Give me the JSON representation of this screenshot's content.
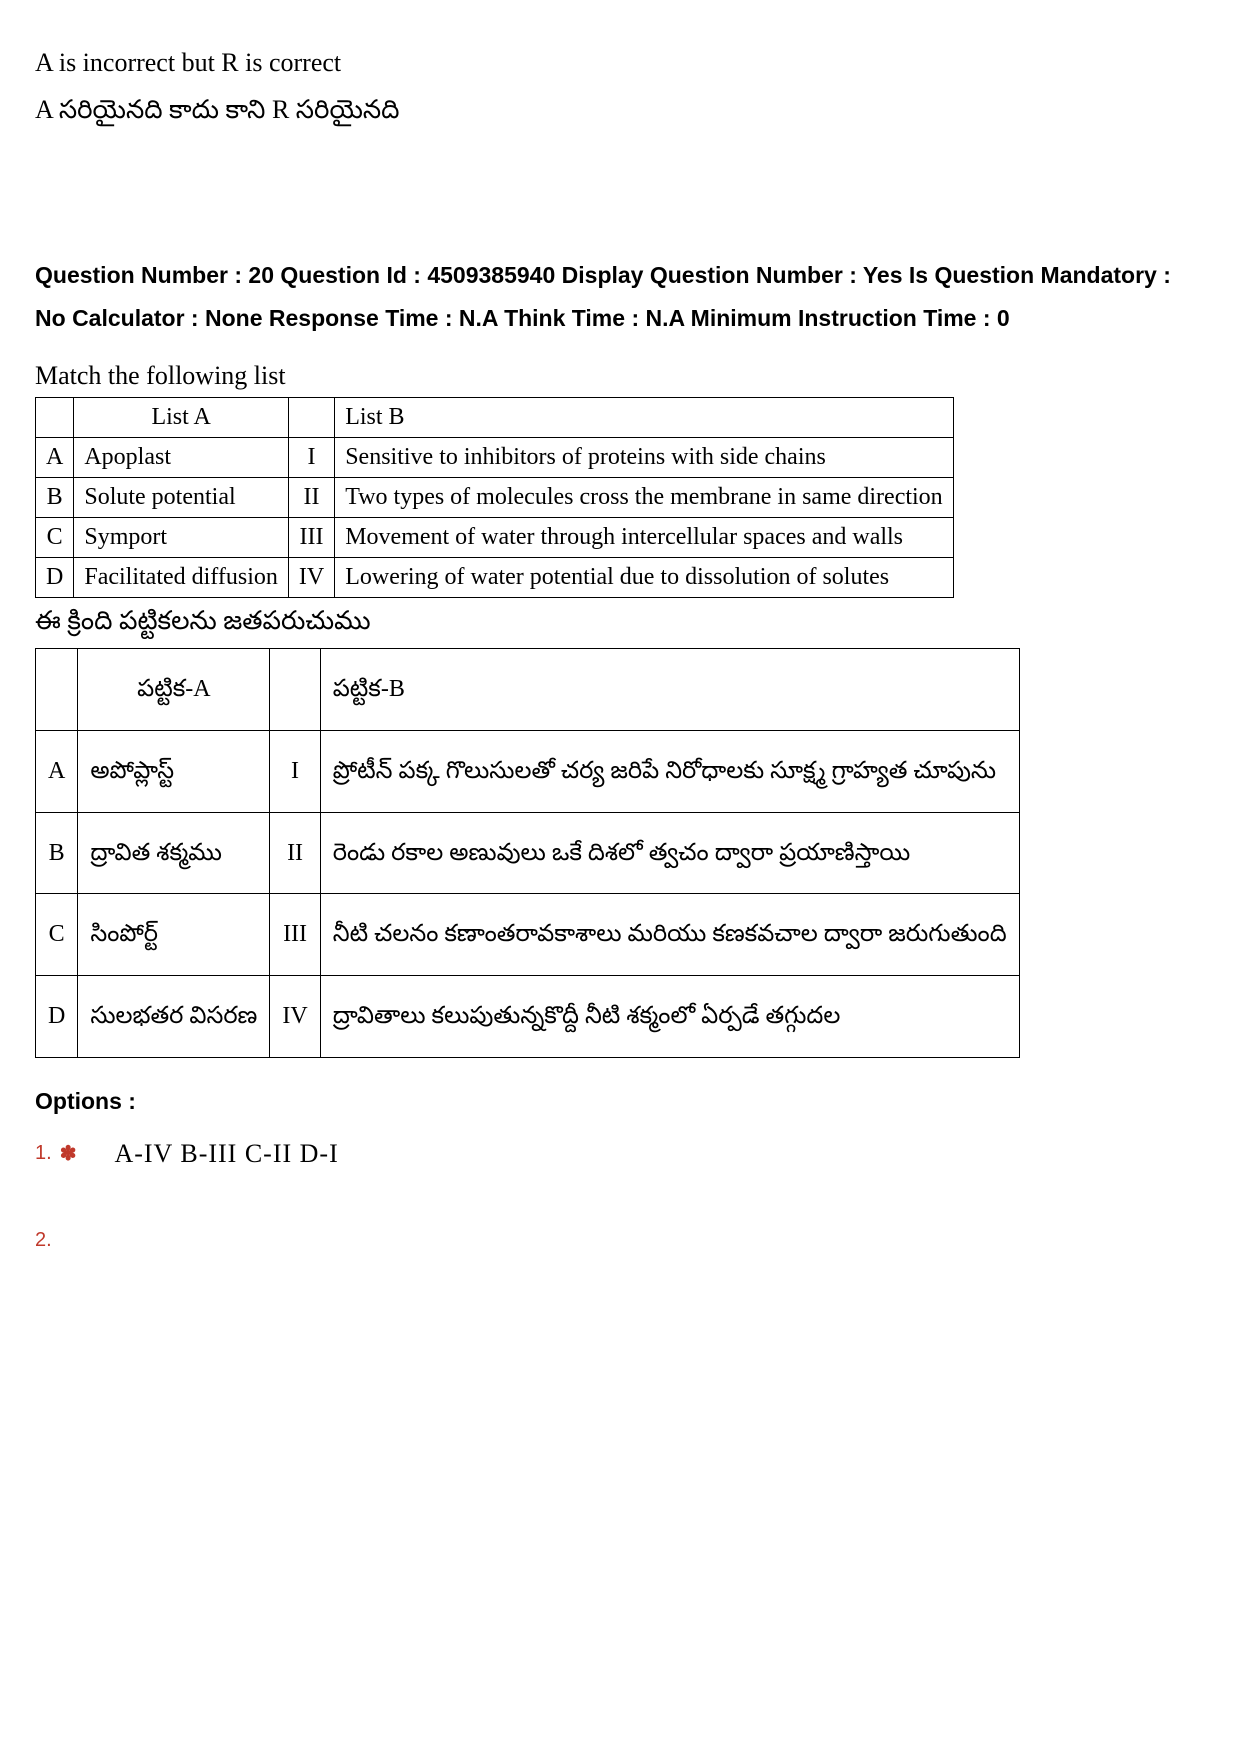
{
  "top_answer": {
    "en": "A is incorrect but R is correct",
    "te": "A సరియైనది కాదు కాని R సరియైనది"
  },
  "meta": {
    "question_number_label": "Question Number :",
    "question_number": "20",
    "question_id_label": "Question Id :",
    "question_id": "4509385940",
    "display_qn_label": "Display Question Number :",
    "display_qn": "Yes",
    "mandatory_label": "Is Question Mandatory :",
    "mandatory": "No",
    "calculator_label": "Calculator :",
    "calculator": "None",
    "response_time_label": "Response Time :",
    "response_time": "N.A",
    "think_time_label": "Think Time :",
    "think_time": "N.A",
    "min_instruction_label": "Minimum Instruction Time :",
    "min_instruction": "0"
  },
  "question": {
    "instruction_en": "Match the following list",
    "instruction_te": "ఈ క్రింది పట్టికలను జతపరుచుము",
    "table_en": {
      "header_a": "List A",
      "header_b": "List B",
      "rows": [
        {
          "la": "A",
          "a": "Apoplast",
          "lb": "I",
          "b": "Sensitive to inhibitors of proteins with side chains"
        },
        {
          "la": "B",
          "a": "Solute potential",
          "lb": "II",
          "b": "Two types of molecules cross the membrane in same direction"
        },
        {
          "la": "C",
          "a": "Symport",
          "lb": "III",
          "b": "Movement of water through intercellular spaces and walls"
        },
        {
          "la": "D",
          "a": "Facilitated diffusion",
          "lb": "IV",
          "b": "Lowering of water potential due to dissolution of solutes"
        }
      ]
    },
    "table_te": {
      "header_a": "పట్టిక-A",
      "header_b": "పట్టిక-B",
      "rows": [
        {
          "la": "A",
          "a": "అపోప్లాస్ట్",
          "lb": "I",
          "b": "ప్రోటీన్ పక్క గొలుసులతో చర్య జరిపే నిరోధాలకు సూక్ష్మ గ్రాహ్యత చూపును"
        },
        {
          "la": "B",
          "a": "ద్రావిత శక్మము",
          "lb": "II",
          "b": "రెండు రకాల అణువులు ఒకే దిశలో త్వచం ద్వారా ప్రయాణిస్తాయి"
        },
        {
          "la": "C",
          "a": "సింపోర్ట్",
          "lb": "III",
          "b": "నీటి చలనం కణాంతరావకాశాలు మరియు కణకవచాల ద్వారా జరుగుతుంది"
        },
        {
          "la": "D",
          "a": "సులభతర విసరణ",
          "lb": "IV",
          "b": "ద్రావితాలు కలుపుతున్నకొద్దీ నీటి శక్మంలో ఏర్పడే తగ్గుదల"
        }
      ]
    }
  },
  "options": {
    "label": "Options :",
    "items": [
      {
        "num": "1.",
        "mark": "✽",
        "text": "A-IV   B-III   C-II    D-I"
      },
      {
        "num": "2.",
        "mark": "",
        "text": ""
      }
    ]
  },
  "colors": {
    "text": "#000000",
    "option_accent": "#c0392b",
    "background": "#ffffff",
    "border": "#000000"
  }
}
